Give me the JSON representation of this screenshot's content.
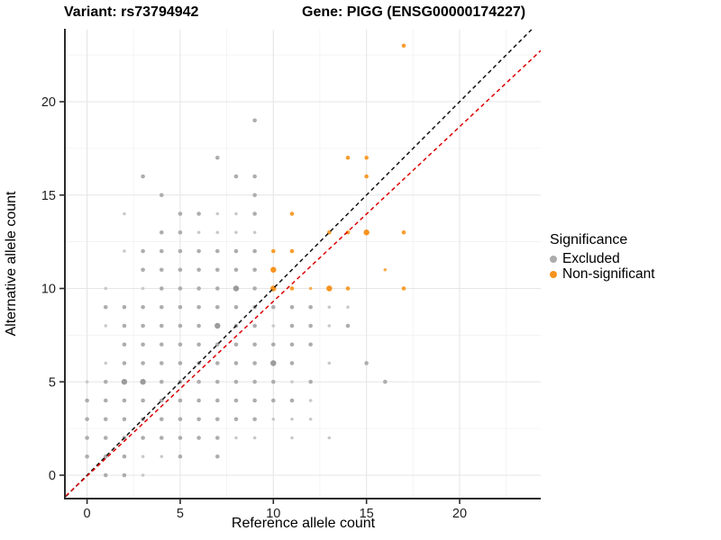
{
  "titles": {
    "variant": "Variant: rs73794942",
    "gene": "Gene: PIGG (ENSG00000174227)"
  },
  "axes": {
    "x_label": "Reference allele count",
    "y_label": "Alternative allele count"
  },
  "legend": {
    "title": "Significance",
    "items": [
      {
        "label": "Excluded",
        "color": "#acacac"
      },
      {
        "label": "Non-significant",
        "color": "#f7941e"
      }
    ]
  },
  "chart_data": {
    "type": "scatter",
    "title": "Variant: rs73794942 / Gene: PIGG (ENSG00000174227)",
    "xlabel": "Reference allele count",
    "ylabel": "Alternative allele count",
    "xlim": [
      -1.14,
      24.35
    ],
    "ylim": [
      -1.2,
      23.9
    ],
    "x_ticks": [
      0,
      5,
      10,
      15,
      20
    ],
    "y_ticks": [
      0,
      5,
      10,
      15,
      20
    ],
    "x_minor": [
      2.5,
      7.5,
      12.5,
      17.5,
      22.5
    ],
    "y_minor": [
      2.5,
      7.5,
      12.5,
      17.5,
      22.5
    ],
    "grid": "on",
    "legend_position": "right",
    "size_classes": {
      "0": 1.8,
      "1": 2.3,
      "2": 3.2
    },
    "series": [
      {
        "name": "Excluded",
        "colors_by_size": {
          "0": "#c9c9c9",
          "1": "#adadad",
          "2": "#9b9b9b"
        },
        "points": [
          [
            1,
            0,
            1
          ],
          [
            2,
            0,
            1
          ],
          [
            3,
            0,
            0
          ],
          [
            0,
            1,
            1
          ],
          [
            1,
            1,
            1
          ],
          [
            2,
            1,
            1
          ],
          [
            3,
            1,
            0
          ],
          [
            4,
            1,
            0
          ],
          [
            5,
            1,
            1
          ],
          [
            7,
            1,
            1
          ],
          [
            0,
            2,
            1
          ],
          [
            1,
            2,
            1
          ],
          [
            2,
            2,
            1
          ],
          [
            3,
            2,
            1
          ],
          [
            4,
            2,
            1
          ],
          [
            5,
            2,
            1
          ],
          [
            6,
            2,
            1
          ],
          [
            7,
            2,
            1
          ],
          [
            8,
            2,
            0
          ],
          [
            9,
            2,
            0
          ],
          [
            11,
            2,
            0
          ],
          [
            13,
            2,
            0
          ],
          [
            0,
            3,
            1
          ],
          [
            1,
            3,
            1
          ],
          [
            2,
            3,
            1
          ],
          [
            3,
            3,
            1
          ],
          [
            4,
            3,
            1
          ],
          [
            5,
            3,
            1
          ],
          [
            6,
            3,
            1
          ],
          [
            7,
            3,
            1
          ],
          [
            8,
            3,
            1
          ],
          [
            9,
            3,
            1
          ],
          [
            10,
            3,
            0
          ],
          [
            11,
            3,
            0
          ],
          [
            12,
            3,
            0
          ],
          [
            0,
            4,
            1
          ],
          [
            1,
            4,
            1
          ],
          [
            2,
            4,
            1
          ],
          [
            3,
            4,
            1
          ],
          [
            4,
            4,
            1
          ],
          [
            5,
            4,
            1
          ],
          [
            6,
            4,
            1
          ],
          [
            7,
            4,
            1
          ],
          [
            8,
            4,
            1
          ],
          [
            9,
            4,
            1
          ],
          [
            10,
            4,
            1
          ],
          [
            11,
            4,
            1
          ],
          [
            12,
            4,
            0
          ],
          [
            0,
            5,
            0
          ],
          [
            1,
            5,
            1
          ],
          [
            2,
            5,
            2
          ],
          [
            3,
            5,
            2
          ],
          [
            4,
            5,
            1
          ],
          [
            5,
            5,
            1
          ],
          [
            6,
            5,
            1
          ],
          [
            7,
            5,
            1
          ],
          [
            8,
            5,
            1
          ],
          [
            9,
            5,
            1
          ],
          [
            10,
            5,
            1
          ],
          [
            11,
            5,
            0
          ],
          [
            12,
            5,
            1
          ],
          [
            16,
            5,
            1
          ],
          [
            1,
            6,
            0
          ],
          [
            2,
            6,
            1
          ],
          [
            3,
            6,
            1
          ],
          [
            4,
            6,
            1
          ],
          [
            5,
            6,
            1
          ],
          [
            6,
            6,
            1
          ],
          [
            7,
            6,
            1
          ],
          [
            8,
            6,
            1
          ],
          [
            9,
            6,
            1
          ],
          [
            10,
            6,
            2
          ],
          [
            11,
            6,
            1
          ],
          [
            13,
            6,
            0
          ],
          [
            15,
            6,
            1
          ],
          [
            2,
            7,
            1
          ],
          [
            3,
            7,
            1
          ],
          [
            4,
            7,
            1
          ],
          [
            5,
            7,
            1
          ],
          [
            6,
            7,
            1
          ],
          [
            7,
            7,
            1
          ],
          [
            8,
            7,
            1
          ],
          [
            9,
            7,
            1
          ],
          [
            10,
            7,
            1
          ],
          [
            11,
            7,
            1
          ],
          [
            12,
            7,
            1
          ],
          [
            1,
            8,
            0
          ],
          [
            2,
            8,
            1
          ],
          [
            3,
            8,
            1
          ],
          [
            4,
            8,
            1
          ],
          [
            5,
            8,
            1
          ],
          [
            6,
            8,
            1
          ],
          [
            7,
            8,
            2
          ],
          [
            8,
            8,
            1
          ],
          [
            9,
            8,
            1
          ],
          [
            10,
            8,
            0
          ],
          [
            11,
            8,
            1
          ],
          [
            12,
            8,
            1
          ],
          [
            13,
            8,
            0
          ],
          [
            14,
            8,
            1
          ],
          [
            1,
            9,
            1
          ],
          [
            2,
            9,
            1
          ],
          [
            3,
            9,
            1
          ],
          [
            4,
            9,
            1
          ],
          [
            5,
            9,
            1
          ],
          [
            6,
            9,
            1
          ],
          [
            7,
            9,
            1
          ],
          [
            8,
            9,
            1
          ],
          [
            9,
            9,
            1
          ],
          [
            10,
            9,
            1
          ],
          [
            11,
            9,
            1
          ],
          [
            12,
            9,
            1
          ],
          [
            13,
            9,
            0
          ],
          [
            14,
            9,
            0
          ],
          [
            1,
            10,
            0
          ],
          [
            3,
            10,
            0
          ],
          [
            4,
            10,
            1
          ],
          [
            5,
            10,
            1
          ],
          [
            6,
            10,
            1
          ],
          [
            7,
            10,
            1
          ],
          [
            8,
            10,
            2
          ],
          [
            9,
            10,
            1
          ],
          [
            3,
            11,
            1
          ],
          [
            4,
            11,
            1
          ],
          [
            5,
            11,
            1
          ],
          [
            6,
            11,
            1
          ],
          [
            7,
            11,
            1
          ],
          [
            8,
            11,
            1
          ],
          [
            9,
            11,
            1
          ],
          [
            2,
            12,
            0
          ],
          [
            3,
            12,
            1
          ],
          [
            4,
            12,
            1
          ],
          [
            5,
            12,
            1
          ],
          [
            6,
            12,
            1
          ],
          [
            7,
            12,
            1
          ],
          [
            8,
            12,
            1
          ],
          [
            9,
            12,
            1
          ],
          [
            4,
            13,
            1
          ],
          [
            5,
            13,
            1
          ],
          [
            6,
            13,
            0
          ],
          [
            7,
            13,
            0
          ],
          [
            8,
            13,
            0
          ],
          [
            9,
            13,
            0
          ],
          [
            2,
            14,
            0
          ],
          [
            5,
            14,
            1
          ],
          [
            6,
            14,
            1
          ],
          [
            7,
            14,
            0
          ],
          [
            8,
            14,
            0
          ],
          [
            9,
            14,
            1
          ],
          [
            4,
            15,
            1
          ],
          [
            9,
            15,
            1
          ],
          [
            3,
            16,
            1
          ],
          [
            8,
            16,
            1
          ],
          [
            9,
            16,
            1
          ],
          [
            7,
            17,
            1
          ],
          [
            9,
            19,
            1
          ]
        ]
      },
      {
        "name": "Non-significant",
        "colors_by_size": {
          "0": "#faae53",
          "1": "#f89d2d",
          "2": "#f7931e"
        },
        "points": [
          [
            10,
            10,
            2
          ],
          [
            11,
            10,
            1
          ],
          [
            12,
            10,
            0
          ],
          [
            13,
            10,
            2
          ],
          [
            14,
            10,
            1
          ],
          [
            17,
            10,
            1
          ],
          [
            10,
            11,
            2
          ],
          [
            16,
            11,
            0
          ],
          [
            10,
            12,
            1
          ],
          [
            11,
            12,
            1
          ],
          [
            13,
            13,
            1
          ],
          [
            14,
            13,
            1
          ],
          [
            15,
            13,
            2
          ],
          [
            17,
            13,
            1
          ],
          [
            11,
            14,
            1
          ],
          [
            15,
            16,
            1
          ],
          [
            14,
            17,
            1
          ],
          [
            15,
            17,
            1
          ],
          [
            17,
            23,
            1
          ]
        ]
      }
    ],
    "lines": [
      {
        "name": "identity-line",
        "color": "#111111",
        "dash": "4.5 3.5",
        "x1": -1.14,
        "y1": -1.14,
        "x2": 23.86,
        "y2": 23.86
      },
      {
        "name": "fit-line",
        "color": "#dd0000",
        "dash": "4.5 3.5",
        "x1": -1.14,
        "y1": -1.11,
        "x2": 24.35,
        "y2": 22.73
      }
    ],
    "style": {
      "major_grid_color": "#e5e5e5",
      "minor_grid_color": "#f1f1f1",
      "axis_color": "#2b2b2b",
      "tick_label_color": "#1f1f1f"
    }
  }
}
